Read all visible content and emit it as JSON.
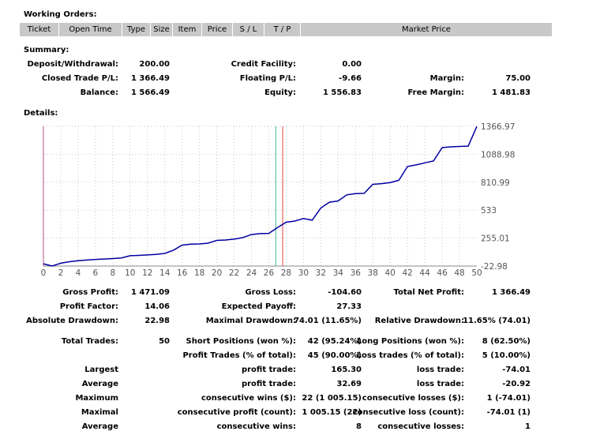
{
  "working_orders": {
    "title": "Working Orders:",
    "columns": [
      "Ticket",
      "Open Time",
      "Type",
      "Size",
      "Item",
      "Price",
      "S / L",
      "T / P",
      "Market Price"
    ]
  },
  "summary": {
    "title": "Summary:",
    "deposit_label": "Deposit/Withdrawal:",
    "deposit_value": "200.00",
    "credit_label": "Credit Facility:",
    "credit_value": "0.00",
    "closed_label": "Closed Trade P/L:",
    "closed_value": "1 366.49",
    "floating_label": "Floating P/L:",
    "floating_value": "-9.66",
    "margin_label": "Margin:",
    "margin_value": "75.00",
    "balance_label": "Balance:",
    "balance_value": "1 566.49",
    "equity_label": "Equity:",
    "equity_value": "1 556.83",
    "free_margin_label": "Free Margin:",
    "free_margin_value": "1 481.83"
  },
  "details": {
    "title": "Details:",
    "gross_profit_label": "Gross Profit:",
    "gross_profit_value": "1 471.09",
    "gross_loss_label": "Gross Loss:",
    "gross_loss_value": "-104.60",
    "total_net_label": "Total Net Profit:",
    "total_net_value": "1 366.49",
    "profit_factor_label": "Profit Factor:",
    "profit_factor_value": "14.06",
    "expected_payoff_label": "Expected Payoff:",
    "expected_payoff_value": "27.33",
    "abs_dd_label": "Absolute Drawdown:",
    "abs_dd_value": "22.98",
    "max_dd_label": "Maximal Drawdown:",
    "max_dd_value": "74.01 (11.65%)",
    "rel_dd_label": "Relative Drawdown:",
    "rel_dd_value": "11.65% (74.01)",
    "total_trades_label": "Total Trades:",
    "total_trades_value": "50",
    "short_label": "Short Positions (won %):",
    "short_value": "42 (95.24%)",
    "long_label": "Long Positions (won %):",
    "long_value": "8 (62.50%)",
    "profit_trades_label": "Profit Trades (% of total):",
    "profit_trades_value": "45 (90.00%)",
    "loss_trades_label": "Loss trades (% of total):",
    "loss_trades_value": "5 (10.00%)",
    "largest_label": "Largest",
    "largest_profit_label": "profit trade:",
    "largest_profit_value": "165.30",
    "largest_loss_label": "loss trade:",
    "largest_loss_value": "-74.01",
    "average_label": "Average",
    "avg_profit_label": "profit trade:",
    "avg_profit_value": "32.69",
    "avg_loss_label": "loss trade:",
    "avg_loss_value": "-20.92",
    "maximum_label": "Maximum",
    "max_wins_label": "consecutive wins ($):",
    "max_wins_value": "22 (1 005.15)",
    "max_losses_label": "consecutive losses ($):",
    "max_losses_value": "1 (-74.01)",
    "maximal_label": "Maximal",
    "maximal_profit_label": "consecutive profit (count):",
    "maximal_profit_value": "1 005.15 (22)",
    "maximal_loss_label": "consecutive loss (count):",
    "maximal_loss_value": "-74.01 (1)",
    "average2_label": "Average",
    "avg_wins_label": "consecutive wins:",
    "avg_wins_value": "8",
    "avg_losses_label": "consecutive losses:",
    "avg_losses_value": "1"
  },
  "chart_data": {
    "type": "line",
    "title": "",
    "xlabel": "",
    "ylabel": "",
    "xlim": [
      0,
      50
    ],
    "ylim": [
      -22.98,
      1366.97
    ],
    "x_ticks": [
      0,
      2,
      4,
      6,
      8,
      10,
      12,
      14,
      16,
      18,
      20,
      22,
      24,
      26,
      28,
      30,
      32,
      34,
      36,
      38,
      40,
      42,
      44,
      46,
      48,
      50
    ],
    "y_ticks": [
      "1366.97",
      "1088.98",
      "810.99",
      "533",
      "255.01",
      "-22.98"
    ],
    "y_tick_values": [
      1366.97,
      1088.98,
      810.99,
      533,
      255.01,
      -22.98
    ],
    "grid": true,
    "series": [
      {
        "color": "#0000a0",
        "x": [
          0,
          1,
          2,
          3,
          4,
          5,
          6,
          7,
          8,
          9,
          10,
          11,
          12,
          13,
          14,
          15,
          16,
          17,
          18,
          19,
          20,
          21,
          22,
          23,
          24,
          25,
          26,
          27,
          28,
          29,
          30,
          31,
          32,
          33,
          34,
          35,
          36,
          37,
          38,
          39,
          40,
          41,
          42,
          43,
          44,
          45,
          46,
          47,
          48,
          49,
          50
        ],
        "y": [
          0,
          -22.98,
          5,
          20,
          30,
          37,
          43,
          47,
          52,
          58,
          80,
          83,
          88,
          93,
          103,
          135,
          185,
          195,
          197,
          205,
          232,
          236,
          245,
          260,
          290,
          300,
          302,
          360,
          413,
          425,
          450,
          433,
          555,
          612,
          625,
          685,
          697,
          700,
          790,
          797,
          808,
          830,
          967,
          983,
          1003,
          1023,
          1155,
          1163,
          1167,
          1170,
          1366.49
        ]
      }
    ],
    "markers": [
      {
        "x": 26.8,
        "color": "#38b48c"
      },
      {
        "x": 27.6,
        "color": "#e04040"
      }
    ],
    "left_marker_color": "#b05080"
  }
}
